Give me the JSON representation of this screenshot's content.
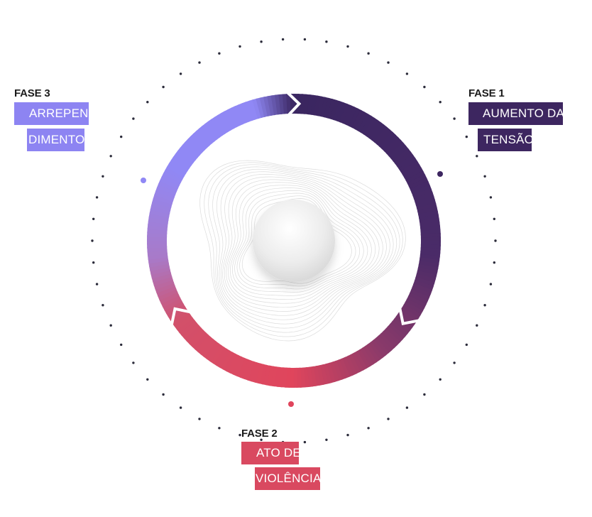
{
  "phases": [
    {
      "label": "FASE 1",
      "line1": "AUMENTO DA",
      "line2": "TENSÃO",
      "color": "#3d2660"
    },
    {
      "label": "FASE 2",
      "line1": "ATO DE",
      "line2": "VIOLÊNCIA",
      "color": "#d94960"
    },
    {
      "label": "FASE 3",
      "line1": "ARREPEN-",
      "line2": "DIMENTO",
      "color": "#8d84f2"
    }
  ],
  "colors": {
    "purple_dark": "#3d2660",
    "red": "#e0455c",
    "lavender": "#9088f5",
    "dot": "#2b2b3a"
  }
}
